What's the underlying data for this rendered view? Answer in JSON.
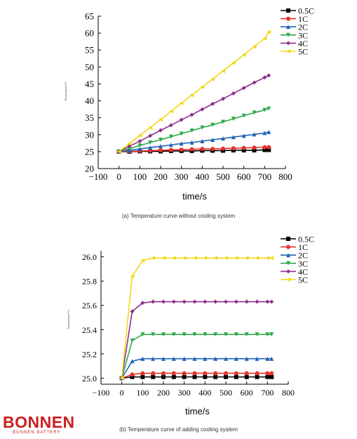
{
  "chart_data": [
    {
      "type": "line",
      "xlabel": "time/s",
      "ylabel": "Temperature/°C",
      "xlim": [
        -100,
        800
      ],
      "ylim": [
        20,
        65
      ],
      "xticks": [
        -100,
        0,
        100,
        200,
        300,
        400,
        500,
        600,
        700,
        800
      ],
      "yticks": [
        20,
        25,
        30,
        35,
        40,
        45,
        50,
        55,
        60,
        65
      ],
      "x": [
        0,
        50,
        100,
        150,
        200,
        250,
        300,
        350,
        400,
        450,
        500,
        550,
        600,
        650,
        700,
        720
      ],
      "legend_position": "top-right",
      "grid": false,
      "series": [
        {
          "name": "0.5C",
          "color": "#000000",
          "marker": "square",
          "values": [
            25.0,
            25.0,
            25.1,
            25.1,
            25.1,
            25.2,
            25.2,
            25.2,
            25.3,
            25.3,
            25.3,
            25.4,
            25.4,
            25.4,
            25.5,
            25.5
          ]
        },
        {
          "name": "1C",
          "color": "#e8322a",
          "marker": "circle",
          "values": [
            25.0,
            25.1,
            25.2,
            25.3,
            25.4,
            25.5,
            25.6,
            25.7,
            25.8,
            25.8,
            25.9,
            26.0,
            26.1,
            26.2,
            26.3,
            26.3
          ]
        },
        {
          "name": "2C",
          "color": "#1f63b5",
          "marker": "triangle-up",
          "values": [
            25.0,
            25.4,
            25.8,
            26.2,
            26.6,
            27.0,
            27.4,
            27.7,
            28.1,
            28.5,
            28.9,
            29.3,
            29.7,
            30.1,
            30.5,
            30.8
          ]
        },
        {
          "name": "3C",
          "color": "#2eab4a",
          "marker": "triangle-down",
          "values": [
            25.0,
            25.9,
            26.8,
            27.7,
            28.5,
            29.4,
            30.3,
            31.2,
            32.1,
            32.9,
            33.8,
            34.7,
            35.6,
            36.5,
            37.3,
            37.7
          ]
        },
        {
          "name": "4C",
          "color": "#8e2f8e",
          "marker": "diamond",
          "values": [
            25.0,
            26.6,
            28.1,
            29.7,
            31.3,
            32.8,
            34.4,
            35.9,
            37.5,
            39.1,
            40.6,
            42.2,
            43.8,
            45.4,
            46.9,
            47.5
          ]
        },
        {
          "name": "5C",
          "color": "#f2d819",
          "marker": "triangle-left",
          "values": [
            25.0,
            27.4,
            29.8,
            32.1,
            34.5,
            36.9,
            39.3,
            41.7,
            44.1,
            46.4,
            48.8,
            51.2,
            53.6,
            56.0,
            58.4,
            60.3
          ]
        }
      ],
      "caption": "(a) Temperature curve without cooling system"
    },
    {
      "type": "line",
      "xlabel": "time/s",
      "ylabel": "Temperature/°C",
      "xlim": [
        -100,
        800
      ],
      "ylim": [
        24.95,
        26.05
      ],
      "xticks": [
        -100,
        0,
        100,
        200,
        300,
        400,
        500,
        600,
        700,
        800
      ],
      "yticks": [
        25.0,
        25.2,
        25.4,
        25.6,
        25.8,
        26.0
      ],
      "ytick_labels": [
        "25.0",
        "25.2",
        "25.4",
        "25.6",
        "25.8",
        "26.0"
      ],
      "x": [
        0,
        50,
        100,
        150,
        200,
        250,
        300,
        350,
        400,
        450,
        500,
        550,
        600,
        650,
        700,
        720
      ],
      "legend_position": "top-right",
      "grid": false,
      "series": [
        {
          "name": "0.5C",
          "color": "#000000",
          "marker": "square",
          "values": [
            25.0,
            25.01,
            25.01,
            25.01,
            25.01,
            25.01,
            25.01,
            25.01,
            25.01,
            25.01,
            25.01,
            25.01,
            25.01,
            25.01,
            25.01,
            25.01
          ]
        },
        {
          "name": "1C",
          "color": "#e8322a",
          "marker": "circle",
          "values": [
            25.0,
            25.03,
            25.04,
            25.04,
            25.04,
            25.04,
            25.04,
            25.04,
            25.04,
            25.04,
            25.04,
            25.04,
            25.04,
            25.04,
            25.04,
            25.04
          ]
        },
        {
          "name": "2C",
          "color": "#1f63b5",
          "marker": "triangle-up",
          "values": [
            25.0,
            25.14,
            25.16,
            25.16,
            25.16,
            25.16,
            25.16,
            25.16,
            25.16,
            25.16,
            25.16,
            25.16,
            25.16,
            25.16,
            25.16,
            25.16
          ]
        },
        {
          "name": "3C",
          "color": "#2eab4a",
          "marker": "triangle-down",
          "values": [
            25.0,
            25.31,
            25.36,
            25.36,
            25.36,
            25.36,
            25.36,
            25.36,
            25.36,
            25.36,
            25.36,
            25.36,
            25.36,
            25.36,
            25.36,
            25.36
          ]
        },
        {
          "name": "4C",
          "color": "#8e2f8e",
          "marker": "diamond",
          "values": [
            25.0,
            25.55,
            25.62,
            25.63,
            25.63,
            25.63,
            25.63,
            25.63,
            25.63,
            25.63,
            25.63,
            25.63,
            25.63,
            25.63,
            25.63,
            25.63
          ]
        },
        {
          "name": "5C",
          "color": "#f2d819",
          "marker": "triangle-left",
          "values": [
            25.0,
            25.84,
            25.97,
            25.99,
            25.99,
            25.99,
            25.99,
            25.99,
            25.99,
            25.99,
            25.99,
            25.99,
            25.99,
            25.99,
            25.99,
            25.99
          ]
        }
      ],
      "caption": "(b) Temperature curve of adding cooling system"
    }
  ],
  "logo": {
    "main": "BONNEN",
    "sub": "BONNEN BATTERY",
    "color": "#cc1f1f"
  }
}
